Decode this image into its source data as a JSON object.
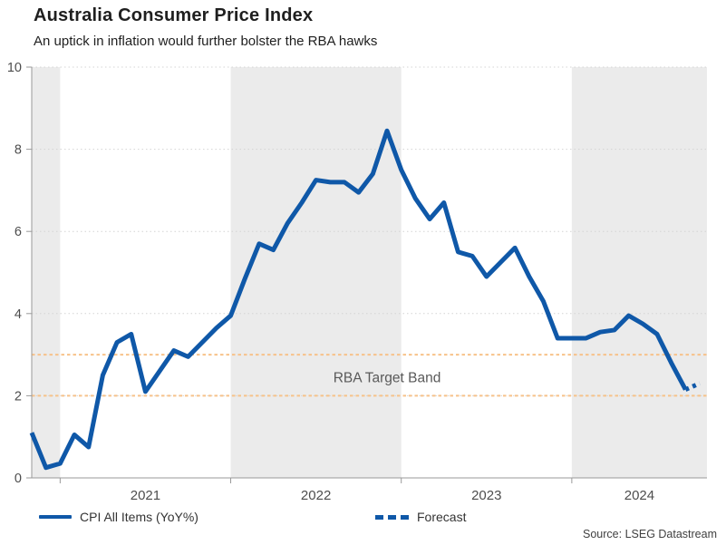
{
  "colors": {
    "line": "#0f58a8",
    "target_band_line": "#f7c28a",
    "year_band_gray": "#ebebeb",
    "axis": "#999999",
    "grid": "#d4d4d4",
    "text_dark": "#1f1f1f",
    "text_gray": "#595959",
    "tick_label": "#4d4d4d"
  },
  "chart_data": {
    "type": "line",
    "title": "Australia Consumer Price Index",
    "subtitle": "An uptick in inflation would further bolster the RBA hawks",
    "source": "Source: LSEG Datastream",
    "ylim": [
      0,
      10
    ],
    "yticks": [
      0,
      2,
      4,
      6,
      8,
      10
    ],
    "grid": "dotted-horizontal",
    "legend_position": "bottom",
    "background_year_shading": true,
    "year_labels": [
      "2021",
      "2022",
      "2023",
      "2024"
    ],
    "months": [
      "2020-11",
      "2020-12",
      "2021-01",
      "2021-02",
      "2021-03",
      "2021-04",
      "2021-05",
      "2021-06",
      "2021-07",
      "2021-08",
      "2021-09",
      "2021-10",
      "2021-11",
      "2021-12",
      "2022-01",
      "2022-02",
      "2022-03",
      "2022-04",
      "2022-05",
      "2022-06",
      "2022-07",
      "2022-08",
      "2022-09",
      "2022-10",
      "2022-11",
      "2022-12",
      "2023-01",
      "2023-02",
      "2023-03",
      "2023-04",
      "2023-05",
      "2023-06",
      "2023-07",
      "2023-08",
      "2023-09",
      "2023-10",
      "2023-11",
      "2023-12",
      "2024-01",
      "2024-02",
      "2024-03",
      "2024-04",
      "2024-05",
      "2024-06",
      "2024-07",
      "2024-08",
      "2024-09",
      "2024-10"
    ],
    "series": [
      {
        "name": "CPI All Items (YoY%)",
        "style": "solid",
        "values": [
          1.1,
          0.25,
          0.35,
          1.05,
          0.75,
          2.5,
          3.3,
          3.5,
          2.1,
          2.6,
          3.1,
          2.95,
          3.3,
          3.65,
          3.95,
          4.85,
          5.7,
          5.55,
          6.2,
          6.7,
          7.25,
          7.2,
          7.2,
          6.95,
          7.4,
          8.45,
          7.5,
          6.8,
          6.3,
          6.7,
          5.5,
          5.4,
          4.9,
          5.25,
          5.6,
          4.9,
          4.3,
          3.4,
          3.4,
          3.4,
          3.55,
          3.6,
          3.95,
          3.75,
          3.5,
          2.8,
          2.15,
          null
        ]
      },
      {
        "name": "Forecast",
        "style": "dotted",
        "x_months": [
          "2024-09",
          "2024-10"
        ],
        "values": [
          2.15,
          2.3
        ]
      }
    ],
    "target_band": {
      "label": "RBA Target Band",
      "low": 2,
      "high": 3,
      "label_month": "2022-12",
      "label_y": 2.33
    }
  }
}
